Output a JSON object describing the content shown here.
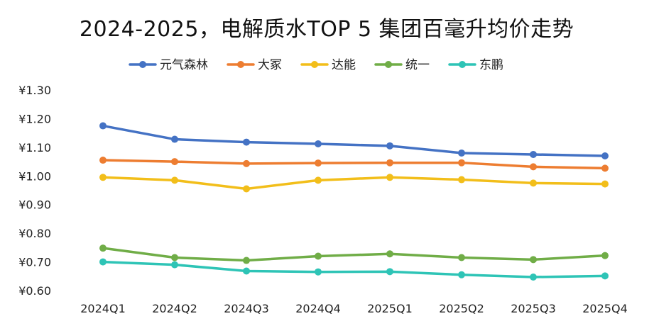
{
  "chart_data": {
    "type": "line",
    "title": "2024-2025，电解质水TOP 5 集团百毫升均价走势",
    "xlabel": "",
    "ylabel": "",
    "categories": [
      "2024Q1",
      "2024Q2",
      "2024Q3",
      "2024Q4",
      "2025Q1",
      "2025Q2",
      "2025Q3",
      "2025Q4"
    ],
    "ylim": [
      0.6,
      1.3
    ],
    "yticks": [
      0.6,
      0.7,
      0.8,
      0.9,
      1.0,
      1.1,
      1.2,
      1.3
    ],
    "ytick_labels": [
      "¥0.60",
      "¥0.70",
      "¥0.80",
      "¥0.90",
      "¥1.00",
      "¥1.10",
      "¥1.20",
      "¥1.30"
    ],
    "grid": false,
    "legend_position": "top",
    "series": [
      {
        "name": "元气森林",
        "color": "#4472C4",
        "values": [
          1.175,
          1.128,
          1.118,
          1.112,
          1.105,
          1.08,
          1.075,
          1.07
        ]
      },
      {
        "name": "大冢",
        "color": "#ED7D31",
        "values": [
          1.055,
          1.05,
          1.043,
          1.045,
          1.046,
          1.046,
          1.032,
          1.027
        ]
      },
      {
        "name": "达能",
        "color": "#F2BE1A",
        "values": [
          0.995,
          0.985,
          0.955,
          0.985,
          0.995,
          0.987,
          0.975,
          0.972
        ]
      },
      {
        "name": "统一",
        "color": "#70AD47",
        "values": [
          0.748,
          0.715,
          0.705,
          0.72,
          0.728,
          0.715,
          0.708,
          0.722
        ]
      },
      {
        "name": "东鹏",
        "color": "#2EC4B6",
        "values": [
          0.7,
          0.69,
          0.668,
          0.665,
          0.666,
          0.655,
          0.647,
          0.651
        ]
      }
    ]
  }
}
